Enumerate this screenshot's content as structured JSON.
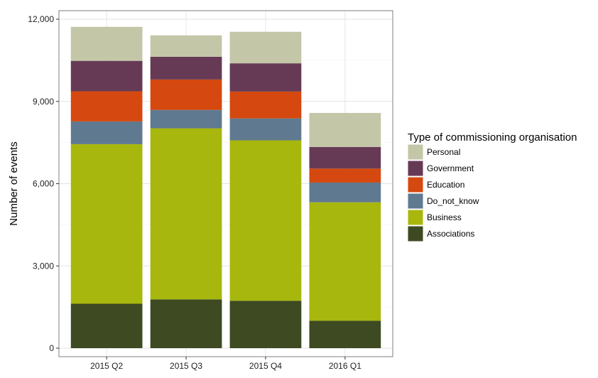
{
  "chart_data": {
    "type": "bar",
    "stacked": true,
    "categories": [
      "2015 Q2",
      "2015 Q3",
      "2015 Q4",
      "2016 Q1"
    ],
    "series": [
      {
        "name": "Associations",
        "color": "#3d4a22",
        "values": [
          1620,
          1780,
          1730,
          1000
        ]
      },
      {
        "name": "Business",
        "color": "#a8b70d",
        "values": [
          5820,
          6240,
          5850,
          4320
        ]
      },
      {
        "name": "Do_not_know",
        "color": "#5f7a90",
        "values": [
          830,
          670,
          800,
          720
        ]
      },
      {
        "name": "Education",
        "color": "#d5480f",
        "values": [
          1100,
          1110,
          980,
          510
        ]
      },
      {
        "name": "Government",
        "color": "#663a55",
        "values": [
          1110,
          830,
          1030,
          790
        ]
      },
      {
        "name": "Personal",
        "color": "#c4c6a8",
        "values": [
          1240,
          780,
          1150,
          1240
        ]
      }
    ],
    "xlabel": "",
    "ylabel": "Number of events",
    "ylim": [
      0,
      12000
    ],
    "yticks": [
      0,
      3000,
      6000,
      9000,
      12000
    ],
    "ytick_labels": [
      "0",
      "3,000",
      "6,000",
      "9,000",
      "12,000"
    ],
    "legend": {
      "title": "Type of commissioning organisation",
      "position": "right",
      "order": [
        "Personal",
        "Government",
        "Education",
        "Do_not_know",
        "Business",
        "Associations"
      ]
    },
    "grid": true
  }
}
